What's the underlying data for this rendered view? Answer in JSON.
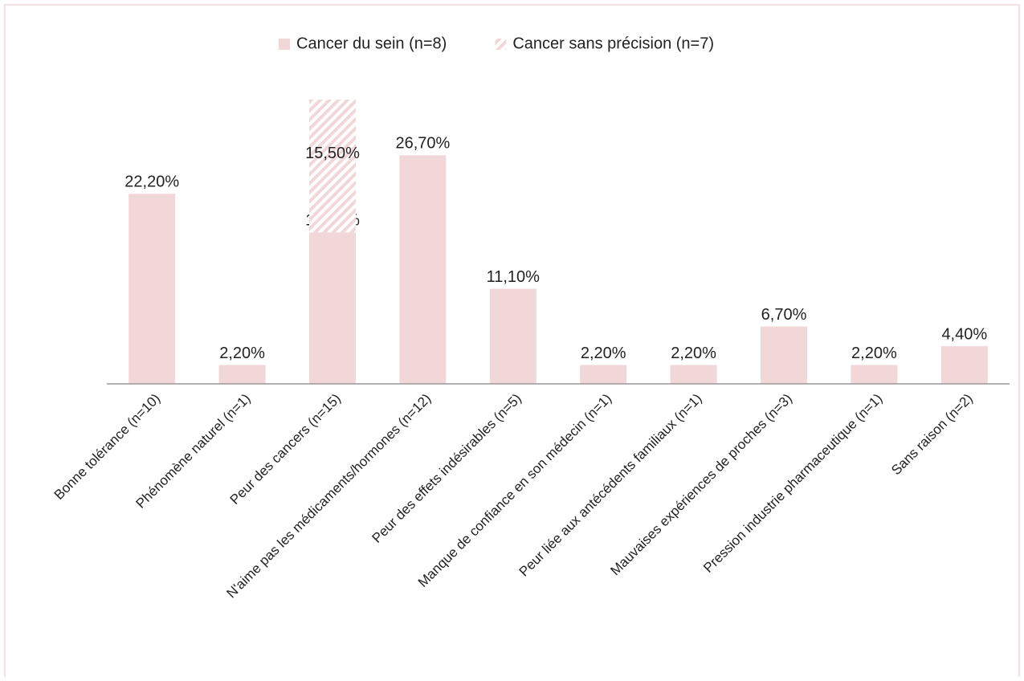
{
  "chart_data": {
    "type": "bar",
    "stacked": true,
    "categories": [
      "Bonne tolérance (n=10)",
      "Phénomène naturel (n=1)",
      "Peur des cancers  (n=15)",
      "N'aime pas les médicaments/hormones (n=12)",
      "Peur des effets indésirables (n=5)",
      "Manque de confiance en son médecin (n=1)",
      "Peur liée aux antécédents familiaux (n=1)",
      "Mauvaises expériences de proches (n=3)",
      "Pression industrie pharmaceutique (n=1)",
      "Sans raison (n=2)"
    ],
    "series": [
      {
        "name": "Cancer du sein (n=8)",
        "color": "#f2d7d9",
        "pattern": "solid",
        "values": [
          22.2,
          2.2,
          17.7,
          26.7,
          11.1,
          2.2,
          2.2,
          6.7,
          2.2,
          4.4
        ],
        "value_labels": [
          "22,20%",
          "2,20%",
          "17,70%",
          "26,70%",
          "11,10%",
          "2,20%",
          "2,20%",
          "6,70%",
          "2,20%",
          "4,40%"
        ]
      },
      {
        "name": "Cancer sans précision (n=7)",
        "color": "#f2d7d9",
        "pattern": "hatch",
        "values": [
          null,
          null,
          15.5,
          null,
          null,
          null,
          null,
          null,
          null,
          null
        ],
        "value_labels": [
          null,
          null,
          "15,50%",
          null,
          null,
          null,
          null,
          null,
          null,
          null
        ]
      }
    ],
    "legend": "top"
  }
}
